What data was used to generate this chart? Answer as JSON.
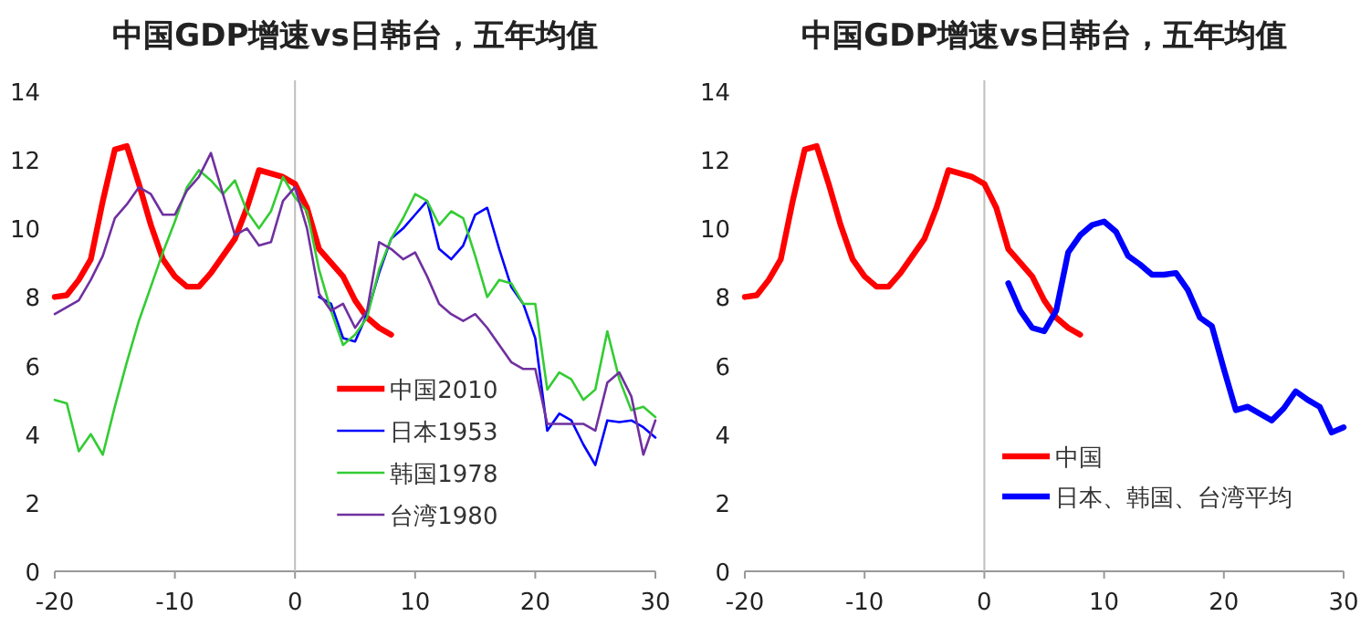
{
  "chart_data": [
    {
      "type": "line",
      "title": "中国GDP增速vs日韩台，五年均值",
      "xlim": [
        -20,
        30
      ],
      "ylim": [
        0,
        14
      ],
      "xticks": [
        -20,
        -10,
        0,
        10,
        20,
        30
      ],
      "yticks": [
        0,
        2,
        4,
        6,
        8,
        10,
        12,
        14
      ],
      "legend": "bottom right",
      "grid": false,
      "ref_lines": [
        {
          "axis": "x",
          "value": 0,
          "color": "#bfbfbf"
        }
      ],
      "series": [
        {
          "name": "中国2010",
          "color": "#ff0000",
          "x": [
            -20,
            -19,
            -18,
            -17,
            -16,
            -15,
            -14,
            -13,
            -12,
            -11,
            -10,
            -9,
            -8,
            -7,
            -6,
            -5,
            -4,
            -3,
            -2,
            -1,
            0,
            1,
            2,
            3,
            4,
            5,
            6,
            7,
            8
          ],
          "values": [
            8.0,
            8.05,
            8.5,
            9.1,
            10.8,
            12.3,
            12.4,
            11.3,
            10.1,
            9.1,
            8.6,
            8.3,
            8.3,
            8.7,
            9.2,
            9.7,
            10.6,
            11.7,
            11.6,
            11.5,
            11.3,
            10.6,
            9.4,
            9.0,
            8.6,
            7.9,
            7.4,
            7.1,
            6.9
          ]
        },
        {
          "name": "日本1953",
          "color": "#0000ff",
          "x": [
            2,
            3,
            4,
            5,
            6,
            7,
            8,
            9,
            10,
            11,
            12,
            13,
            14,
            15,
            16,
            17,
            18,
            19,
            20,
            21,
            22,
            23,
            24,
            25,
            26,
            27,
            28,
            29,
            30
          ],
          "values": [
            8.0,
            7.8,
            6.8,
            6.7,
            7.5,
            8.7,
            9.7,
            10.0,
            10.4,
            10.8,
            9.4,
            9.1,
            9.5,
            10.4,
            10.6,
            9.4,
            8.3,
            7.8,
            6.8,
            4.1,
            4.6,
            4.4,
            3.7,
            3.1,
            4.4,
            4.35,
            4.4,
            4.2,
            3.9
          ]
        },
        {
          "name": "韩国1978",
          "color": "#33cc33",
          "x": [
            -20,
            -19,
            -18,
            -17,
            -16,
            -15,
            -14,
            -13,
            -12,
            -11,
            -10,
            -9,
            -8,
            -7,
            -6,
            -5,
            -4,
            -3,
            -2,
            -1,
            0,
            1,
            2,
            3,
            4,
            5,
            6,
            7,
            8,
            9,
            10,
            11,
            12,
            13,
            14,
            15,
            16,
            17,
            18,
            19,
            20,
            21,
            22,
            23,
            24,
            25,
            26,
            27,
            28,
            29,
            30
          ],
          "values": [
            5.0,
            4.9,
            3.5,
            4.0,
            3.4,
            4.8,
            6.1,
            7.3,
            8.3,
            9.3,
            10.2,
            11.2,
            11.7,
            11.4,
            11.0,
            11.4,
            10.5,
            10.0,
            10.5,
            11.5,
            10.9,
            10.5,
            8.8,
            7.6,
            6.6,
            6.9,
            7.4,
            8.8,
            9.7,
            10.3,
            11.0,
            10.8,
            10.1,
            10.5,
            10.3,
            9.2,
            8.0,
            8.5,
            8.4,
            7.8,
            7.8,
            5.3,
            5.8,
            5.6,
            5.0,
            5.3,
            7.0,
            5.6,
            4.7,
            4.8,
            4.5
          ]
        },
        {
          "name": "台湾1980",
          "color": "#7030a0",
          "x": [
            -20,
            -19,
            -18,
            -17,
            -16,
            -15,
            -14,
            -13,
            -12,
            -11,
            -10,
            -9,
            -8,
            -7,
            -6,
            -5,
            -4,
            -3,
            -2,
            -1,
            0,
            1,
            2,
            3,
            4,
            5,
            6,
            7,
            8,
            9,
            10,
            11,
            12,
            13,
            14,
            15,
            16,
            17,
            18,
            19,
            20,
            21,
            22,
            23,
            24,
            25,
            26,
            27,
            28,
            29,
            30
          ],
          "values": [
            7.5,
            7.7,
            7.9,
            8.5,
            9.2,
            10.3,
            10.7,
            11.2,
            11.0,
            10.4,
            10.4,
            11.1,
            11.5,
            12.2,
            11.0,
            9.8,
            10.0,
            9.5,
            9.6,
            10.8,
            11.2,
            10.0,
            8.1,
            7.6,
            7.8,
            7.1,
            7.6,
            9.6,
            9.4,
            9.1,
            9.3,
            8.6,
            7.8,
            7.5,
            7.3,
            7.5,
            7.1,
            6.6,
            6.1,
            5.9,
            5.9,
            4.3,
            4.3,
            4.3,
            4.3,
            4.1,
            5.5,
            5.8,
            5.1,
            3.4,
            4.4
          ]
        }
      ]
    },
    {
      "type": "line",
      "title": "中国GDP增速vs日韩台，五年均值",
      "xlim": [
        -20,
        30
      ],
      "ylim": [
        0,
        14
      ],
      "xticks": [
        -20,
        -10,
        0,
        10,
        20,
        30
      ],
      "yticks": [
        0,
        2,
        4,
        6,
        8,
        10,
        12,
        14
      ],
      "legend": "bottom",
      "grid": false,
      "ref_lines": [
        {
          "axis": "x",
          "value": 0,
          "color": "#bfbfbf"
        }
      ],
      "series": [
        {
          "name": "中国",
          "color": "#ff0000",
          "x": [
            -20,
            -19,
            -18,
            -17,
            -16,
            -15,
            -14,
            -13,
            -12,
            -11,
            -10,
            -9,
            -8,
            -7,
            -6,
            -5,
            -4,
            -3,
            -2,
            -1,
            0,
            1,
            2,
            3,
            4,
            5,
            6,
            7,
            8
          ],
          "values": [
            8.0,
            8.05,
            8.5,
            9.1,
            10.8,
            12.3,
            12.4,
            11.3,
            10.1,
            9.1,
            8.6,
            8.3,
            8.3,
            8.7,
            9.2,
            9.7,
            10.6,
            11.7,
            11.6,
            11.5,
            11.3,
            10.6,
            9.4,
            9.0,
            8.6,
            7.9,
            7.4,
            7.1,
            6.9
          ]
        },
        {
          "name": "日本、韩国、台湾平均",
          "color": "#0000ff",
          "x": [
            2,
            3,
            4,
            5,
            6,
            7,
            8,
            9,
            10,
            11,
            12,
            13,
            14,
            15,
            16,
            17,
            18,
            19,
            20,
            21,
            22,
            23,
            24,
            25,
            26,
            27,
            28,
            29,
            30
          ],
          "values": [
            8.4,
            7.6,
            7.1,
            7.0,
            7.6,
            9.3,
            9.8,
            10.1,
            10.2,
            9.9,
            9.2,
            8.95,
            8.65,
            8.65,
            8.7,
            8.2,
            7.4,
            7.15,
            5.9,
            4.7,
            4.8,
            4.6,
            4.4,
            4.75,
            5.25,
            5.0,
            4.8,
            4.05,
            4.2
          ]
        }
      ]
    }
  ]
}
